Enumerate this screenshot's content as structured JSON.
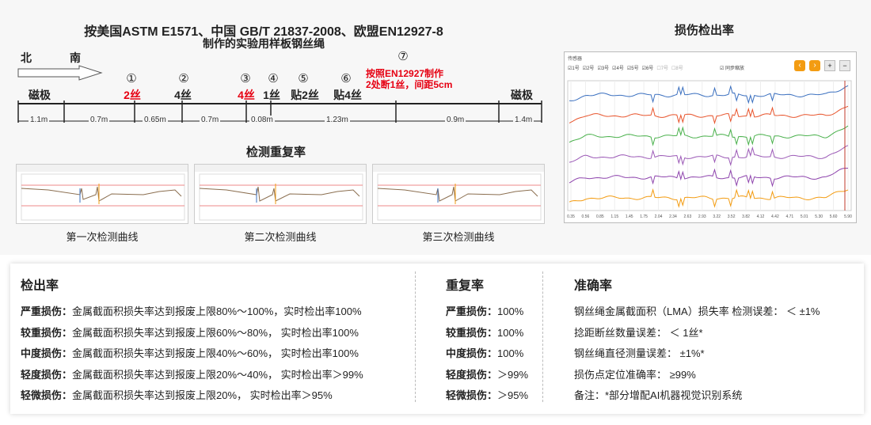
{
  "diagram": {
    "title_line1": "按美国ASTM E1571、中国 GB/T 21837-2008、欧盟EN12927-8",
    "title_line2": "制作的实验用样板钢丝绳",
    "north": "北",
    "south": "南",
    "pole_left": "磁极",
    "pole_right": "磁极",
    "markers": [
      {
        "num": "①",
        "label": "2丝",
        "red": true
      },
      {
        "num": "②",
        "label": "4丝",
        "red": false
      },
      {
        "num": "③",
        "label": "4丝",
        "red": true
      },
      {
        "num": "④",
        "label": "1丝",
        "red": false
      },
      {
        "num": "⑤",
        "label": "贴2丝",
        "red": false
      },
      {
        "num": "⑥",
        "label": "贴4丝",
        "red": false
      },
      {
        "num": "⑦",
        "label": "",
        "red": false
      }
    ],
    "note_line1": "按照EN12927制作",
    "note_line2": "2处断1丝，间距5cm",
    "distances": [
      "1.1m",
      "0.7m",
      "0.65m",
      "0.7m",
      "0.08m",
      "1.23m",
      "0.9m",
      "1.4m"
    ]
  },
  "repeat_section": {
    "title": "检测重复率",
    "captions": [
      "第一次检测曲线",
      "第二次检测曲线",
      "第三次检测曲线"
    ]
  },
  "detection_chart": {
    "title": "损伤检出率",
    "toolbar_label": "传感器",
    "channels": [
      "1号",
      "2号",
      "3号",
      "4号",
      "5号",
      "6号",
      "7号",
      "8号"
    ],
    "channel_checked": [
      true,
      true,
      true,
      true,
      true,
      true,
      false,
      false
    ],
    "sync_label": "同步缩放",
    "x_ticks": [
      "0.35",
      "0.56",
      "0.85",
      "1.15",
      "1.45",
      "1.75",
      "2.04",
      "2.34",
      "2.63",
      "2.93",
      "3.22",
      "3.52",
      "3.82",
      "4.12",
      "4.42",
      "4.71",
      "5.01",
      "5.30",
      "5.60",
      "5.90"
    ],
    "line_colors": [
      "#3a6fbf",
      "#e8542c",
      "#48b04a",
      "#9b59b6",
      "#8e44ad",
      "#f39c12"
    ]
  },
  "summary": {
    "detection": {
      "heading": "检出率",
      "rows": [
        {
          "label": "严重损伤：",
          "text": "金属截面积损失率达到报废上限80%～100%，实时检出率100%"
        },
        {
          "label": "较重损伤：",
          "text": "金属截面积损失率达到报废上限60%～80%， 实时检出率100%"
        },
        {
          "label": "中度损伤：",
          "text": "金属截面积损失率达到报废上限40%～60%， 实时检出率100%"
        },
        {
          "label": "轻度损伤：",
          "text": "金属截面积损失率达到报废上限20%～40%， 实时检出率＞99%"
        },
        {
          "label": "轻微损伤：",
          "text": "金属截面积损失率达到报废上限20%， 实时检出率＞95%"
        }
      ]
    },
    "repeatability": {
      "heading": "重复率",
      "rows": [
        {
          "label": "严重损伤：",
          "text": "100%"
        },
        {
          "label": "较重损伤：",
          "text": "100%"
        },
        {
          "label": "中度损伤：",
          "text": "100%"
        },
        {
          "label": "轻度损伤：",
          "text": "＞99%"
        },
        {
          "label": "轻微损伤：",
          "text": "＞95%"
        }
      ]
    },
    "accuracy": {
      "heading": "准确率",
      "rows": [
        "钢丝绳金属截面积（LMA）损失率 检测误差：  ＜ ±1%",
        "捻距断丝数量误差：  ＜ 1丝*",
        "钢丝绳直径测量误差：  ±1%*",
        "损伤点定位准确率：  ≥99%",
        "备注：*部分增配AI机器视觉识别系统"
      ]
    }
  }
}
